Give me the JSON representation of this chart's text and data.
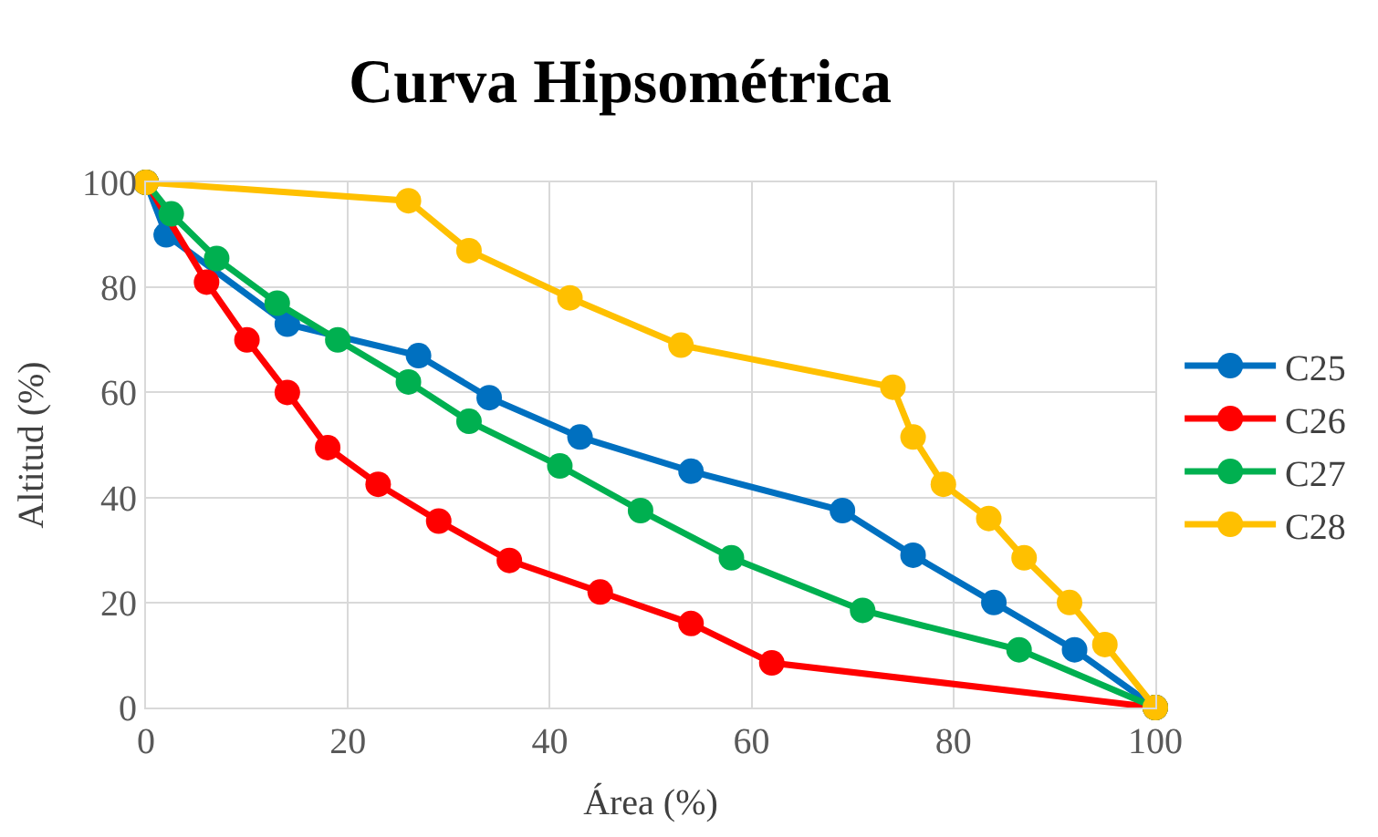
{
  "chart_data": {
    "type": "line",
    "title": "Curva Hipsométrica",
    "xlabel": "Área (%)",
    "ylabel": "Altitud (%)",
    "xlim": [
      0,
      100
    ],
    "xticks": [
      0,
      20,
      40,
      60,
      80,
      100
    ],
    "ylim": [
      0,
      100
    ],
    "yticks": [
      0,
      20,
      40,
      60,
      80,
      100
    ],
    "grid": true,
    "legend": "right",
    "marker": "circle",
    "line_style": "solid",
    "series": [
      {
        "name": "C25",
        "color": "#0070c0",
        "x": [
          0,
          2,
          14,
          27,
          34,
          43,
          54,
          69,
          76,
          84,
          92,
          100
        ],
        "values": [
          100,
          90,
          73,
          67,
          59,
          51.5,
          45,
          37.5,
          29,
          20,
          11,
          0
        ]
      },
      {
        "name": "C26",
        "color": "#ff0000",
        "x": [
          0,
          6,
          10,
          14,
          18,
          23,
          29,
          36,
          45,
          54,
          62,
          100
        ],
        "values": [
          100,
          81,
          70,
          60,
          49.5,
          42.5,
          35.5,
          28,
          22,
          16,
          8.5,
          0
        ]
      },
      {
        "name": "C27",
        "color": "#00b050",
        "x": [
          0,
          2.5,
          7,
          13,
          19,
          26,
          32,
          41,
          49,
          58,
          71,
          86.5,
          100
        ],
        "values": [
          100,
          94,
          85.5,
          77,
          70,
          62,
          54.5,
          46,
          37.5,
          28.5,
          18.5,
          11,
          0
        ]
      },
      {
        "name": "C28",
        "color": "#ffc000",
        "x": [
          0,
          26,
          32,
          42,
          53,
          74,
          76,
          79,
          83.5,
          87,
          91.5,
          95,
          100
        ],
        "values": [
          100,
          96.5,
          87,
          78,
          69,
          61,
          51.5,
          42.5,
          36,
          28.5,
          20,
          12,
          0
        ]
      }
    ]
  }
}
